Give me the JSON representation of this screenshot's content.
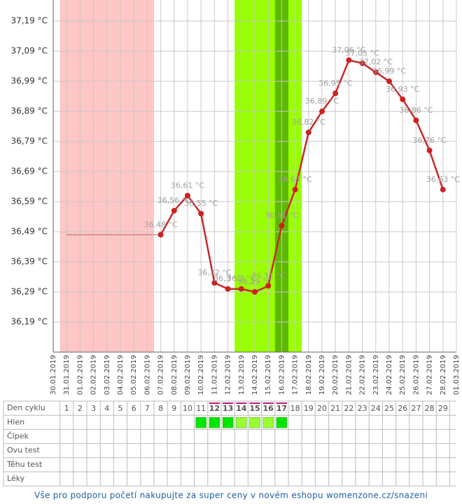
{
  "chart_data": {
    "type": "line",
    "categories": [
      "30.01.2019",
      "31.01.2019",
      "01.02.2019",
      "02.02.2019",
      "03.02.2019",
      "04.02.2019",
      "05.02.2019",
      "06.02.2019",
      "07.02.2019",
      "08.02.2019",
      "09.02.2019",
      "10.02.2019",
      "11.02.2019",
      "12.02.2019",
      "13.02.2019",
      "14.02.2019",
      "15.02.2019",
      "16.02.2019",
      "17.02.2019",
      "18.02.2019",
      "19.02.2019",
      "20.02.2019",
      "21.02.2019",
      "22.02.2019",
      "23.02.2019",
      "24.02.2019",
      "25.02.2019",
      "26.02.2019",
      "27.02.2019",
      "28.02.2019",
      "01.03.2019"
    ],
    "series": [
      {
        "color": "#c62a2a",
        "values": [
          null,
          null,
          null,
          null,
          null,
          null,
          null,
          null,
          36.48,
          36.56,
          36.61,
          36.55,
          36.32,
          36.3,
          36.3,
          36.29,
          36.31,
          36.51,
          36.63,
          36.82,
          36.89,
          36.95,
          37.06,
          37.05,
          37.02,
          36.99,
          36.93,
          36.86,
          36.76,
          36.63,
          null
        ],
        "value_labels": [
          null,
          null,
          null,
          null,
          null,
          null,
          null,
          null,
          "36,48 °C",
          "36,56 °C",
          "36,61 °C",
          "36,55 °C",
          "36,32 °C",
          "36,3 °C",
          "36,3 °C",
          "36,29 °C",
          "36,31 °C",
          "36,51 °C",
          "36,63 °C",
          "36,82 °C",
          "36,89 °C",
          "36,95 °C",
          "37,06 °C",
          "37,05 °C",
          "37,02 °C",
          "36,99 °C",
          "36,93 °C",
          "36,86 °C",
          "36,76 °C",
          "36,63 °C",
          null
        ]
      }
    ],
    "ylim": [
      36.09,
      37.26
    ],
    "yticks": [
      {
        "value": 36.19,
        "label": "36,19 °C"
      },
      {
        "value": 36.29,
        "label": "36,29 °C"
      },
      {
        "value": 36.39,
        "label": "36,39 °C"
      },
      {
        "value": 36.49,
        "label": "36,49 °C"
      },
      {
        "value": 36.59,
        "label": "36,59 °C"
      },
      {
        "value": 36.69,
        "label": "36,69 °C"
      },
      {
        "value": 36.79,
        "label": "36,79 °C"
      },
      {
        "value": 36.89,
        "label": "36,89 °C"
      },
      {
        "value": 36.99,
        "label": "36,99 °C"
      },
      {
        "value": 37.09,
        "label": "37,09 °C"
      },
      {
        "value": 37.19,
        "label": "37,19 °C"
      }
    ],
    "grid": true,
    "bands": [
      {
        "start": "31.01.2019",
        "end": "06.02.2019",
        "color": "#ffc6c6"
      },
      {
        "start": "13.02.2019",
        "end": "17.02.2019",
        "color": "#99ff00"
      },
      {
        "start": "16.02.2019",
        "end": "16.02.2019",
        "color": "#5fb800"
      }
    ]
  },
  "table": {
    "rows": [
      {
        "label": "Den cyklu",
        "cells": [
          1,
          2,
          3,
          4,
          5,
          6,
          7,
          8,
          9,
          10,
          11,
          12,
          13,
          14,
          15,
          16,
          17,
          18,
          19,
          20,
          21,
          22,
          23,
          24,
          25,
          26,
          27,
          28,
          29
        ],
        "fertile": [
          12,
          13,
          14,
          15,
          16,
          17
        ]
      },
      {
        "label": "Hlen",
        "colors": [
          null,
          null,
          null,
          null,
          null,
          null,
          null,
          null,
          null,
          null,
          "#00e600",
          "#00e600",
          "#00e600",
          "#99ff33",
          "#99ff33",
          "#99ff33",
          "#00e600",
          null,
          null,
          null,
          null,
          null,
          null,
          null,
          null,
          null,
          null,
          null,
          null
        ]
      },
      {
        "label": "Čípek"
      },
      {
        "label": "Ovu test"
      },
      {
        "label": "Těhu test"
      },
      {
        "label": "Léky"
      }
    ]
  },
  "footer": "Vše pro podporu početí nakupujte za super ceny v novém eshopu womenzone.cz/snazeni"
}
